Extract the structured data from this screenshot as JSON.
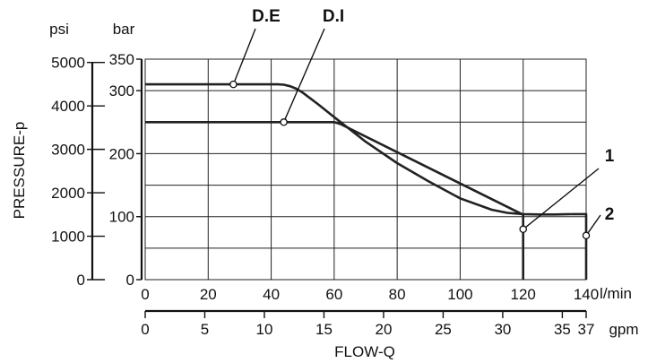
{
  "chart_data": {
    "type": "line",
    "axes": {
      "pressure_psi": {
        "unit": "psi",
        "ticks": [
          0,
          1000,
          2000,
          3000,
          4000,
          5000
        ]
      },
      "pressure_bar": {
        "unit": "bar",
        "ticks": [
          0,
          100,
          200,
          300,
          350
        ],
        "ylim": [
          0,
          350
        ]
      },
      "flow_lmin": {
        "unit": "l/min",
        "ticks": [
          0,
          20,
          40,
          60,
          80,
          100,
          120,
          140
        ],
        "xlim": [
          0,
          140
        ]
      },
      "flow_gpm": {
        "unit": "gpm",
        "ticks": [
          0,
          5,
          10,
          15,
          20,
          25,
          30,
          35,
          37
        ]
      }
    },
    "ylabel": "PRESSURE-p",
    "xlabel": "FLOW-Q",
    "grid": true,
    "series": [
      {
        "name": "D.E",
        "x": [
          0,
          42,
          44,
          46,
          48,
          50,
          55,
          60,
          70,
          80,
          90,
          100,
          110,
          115,
          120,
          125,
          130,
          136,
          139,
          140,
          140
        ],
        "y": [
          310,
          310,
          309.5,
          307,
          303,
          297,
          278,
          258,
          219,
          185,
          156,
          129,
          111,
          106,
          104,
          103.5,
          103.5,
          104,
          104,
          104,
          0
        ]
      },
      {
        "name": "D.I",
        "x": [
          0,
          60,
          62,
          120,
          120
        ],
        "y": [
          250,
          250,
          247,
          103,
          0
        ]
      }
    ],
    "annotations": [
      {
        "label": "D.E",
        "marker": [
          28,
          310
        ]
      },
      {
        "label": "D.I",
        "marker": [
          44,
          250
        ]
      },
      {
        "label": "1",
        "marker": [
          120,
          80
        ]
      },
      {
        "label": "2",
        "marker": [
          140,
          70
        ]
      }
    ]
  }
}
